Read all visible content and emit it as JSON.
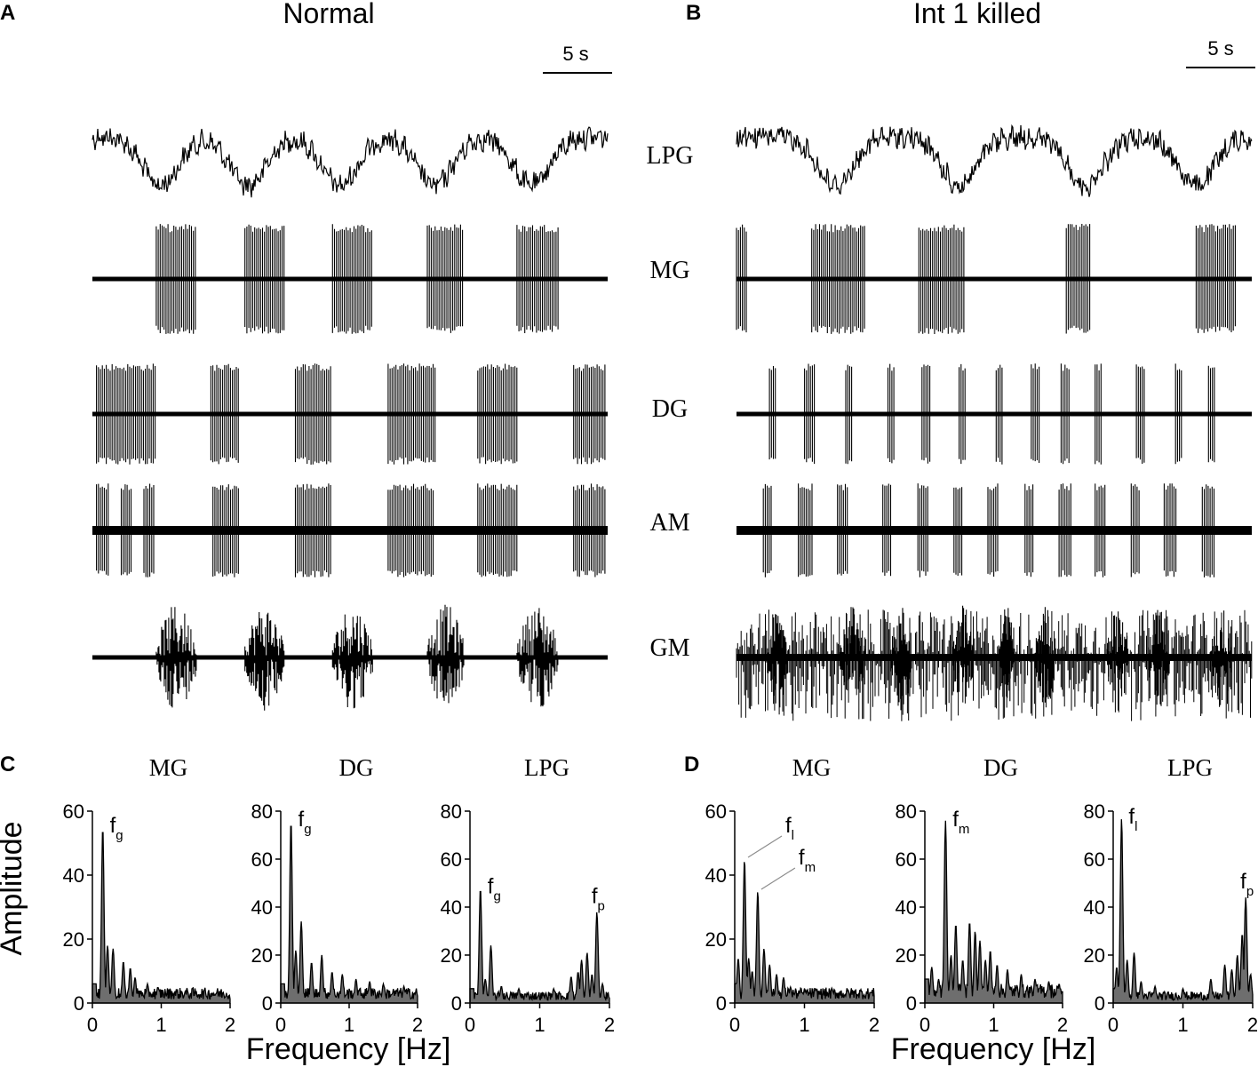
{
  "colors": {
    "ink": "#000000",
    "spectrum_fill": "#6e6e6e",
    "annot_line": "#8c8c8c"
  },
  "panels": {
    "A": {
      "letter": "A",
      "title": "Normal",
      "scale_bar": "5 s"
    },
    "B": {
      "letter": "B",
      "title": "Int 1 killed",
      "scale_bar": "5 s"
    },
    "C": {
      "letter": "C"
    },
    "D": {
      "letter": "D"
    }
  },
  "trace_labels": [
    "LPG",
    "MG",
    "DG",
    "AM",
    "GM"
  ],
  "xlabel": "Frequency [Hz]",
  "ylabel": "Amplitude",
  "chart_data": [
    {
      "type": "line",
      "panel": "A",
      "description_note": "",
      "x_unit": "s",
      "scale_bar_s": 5,
      "series": [
        {
          "name": "LPG",
          "kind": "slow_wave",
          "troughs_s": [
            6.6,
            15.1,
            24.0,
            33.2,
            42.6
          ]
        },
        {
          "name": "MG",
          "kind": "bursts",
          "bursts_s": [
            [
              6.2,
              10.1
            ],
            [
              14.8,
              18.6
            ],
            [
              23.3,
              27.2
            ],
            [
              32.5,
              36.1
            ],
            [
              41.2,
              45.2
            ]
          ]
        },
        {
          "name": "DG",
          "kind": "bursts",
          "bursts_s": [
            [
              0.4,
              6.2
            ],
            [
              11.5,
              14.2
            ],
            [
              19.7,
              23.3
            ],
            [
              28.7,
              33.3
            ],
            [
              37.4,
              41.2
            ],
            [
              46.7,
              49.8
            ]
          ]
        },
        {
          "name": "AM",
          "kind": "bursts",
          "bursts_s": [
            [
              0.4,
              1.7
            ],
            [
              2.8,
              3.8
            ],
            [
              5.0,
              6.0
            ],
            [
              11.7,
              14.2
            ],
            [
              19.7,
              23.3
            ],
            [
              28.7,
              33.1
            ],
            [
              37.4,
              41.2
            ],
            [
              46.7,
              49.8
            ]
          ]
        },
        {
          "name": "GM",
          "kind": "bursts",
          "bursts_s": [
            [
              6.2,
              10.1
            ],
            [
              14.8,
              18.6
            ],
            [
              23.3,
              27.2
            ],
            [
              32.5,
              36.1
            ],
            [
              41.2,
              45.2
            ]
          ]
        }
      ]
    },
    {
      "type": "line",
      "panel": "B",
      "x_unit": "s",
      "scale_bar_s": 5,
      "series": [
        {
          "name": "LPG",
          "kind": "slow_wave",
          "troughs_s": [
            9.6,
            21.6,
            33.9,
            44.6
          ]
        },
        {
          "name": "MG",
          "kind": "bursts",
          "bursts_s": [
            [
              0.0,
              1.0
            ],
            [
              7.3,
              12.5
            ],
            [
              17.7,
              22.2
            ],
            [
              32.0,
              34.3
            ],
            [
              44.6,
              48.5
            ]
          ]
        },
        {
          "name": "DG",
          "kind": "bursts",
          "bursts_s": [
            [
              3.2,
              3.9
            ],
            [
              6.6,
              7.7
            ],
            [
              10.6,
              11.3
            ],
            [
              14.7,
              15.4
            ],
            [
              18.0,
              18.8
            ],
            [
              21.6,
              22.2
            ],
            [
              25.2,
              25.9
            ],
            [
              28.6,
              29.5
            ],
            [
              31.5,
              32.3
            ],
            [
              34.8,
              35.5
            ],
            [
              38.8,
              39.6
            ],
            [
              42.6,
              43.2
            ],
            [
              45.8,
              46.5
            ]
          ]
        },
        {
          "name": "AM",
          "kind": "bursts",
          "bursts_s": [
            [
              2.6,
              3.5
            ],
            [
              6.0,
              7.4
            ],
            [
              9.8,
              10.8
            ],
            [
              14.2,
              15.1
            ],
            [
              17.6,
              18.6
            ],
            [
              21.1,
              22.0
            ],
            [
              24.4,
              25.5
            ],
            [
              28.0,
              28.9
            ],
            [
              31.3,
              32.5
            ],
            [
              34.8,
              35.9
            ],
            [
              38.3,
              39.2
            ],
            [
              41.5,
              42.8
            ],
            [
              45.2,
              46.5
            ]
          ]
        },
        {
          "name": "GM",
          "kind": "noisy_bursts",
          "bursts_s": [
            [
              3.0,
              5.0
            ],
            [
              10.0,
              12.5
            ],
            [
              15.0,
              17.0
            ],
            [
              21.0,
              23.0
            ],
            [
              25.5,
              27.0
            ],
            [
              29.0,
              31.0
            ],
            [
              36.0,
              38.0
            ],
            [
              40.0,
              42.0
            ],
            [
              46.0,
              48.0
            ]
          ]
        }
      ]
    },
    {
      "type": "area",
      "panel": "C",
      "title": "MG",
      "xlim": [
        0,
        2
      ],
      "ylim": [
        0,
        60
      ],
      "xticks": [
        0,
        1,
        2
      ],
      "yticks": [
        0,
        20,
        40,
        60
      ],
      "peaks": [
        [
          0.15,
          55
        ],
        [
          0.22,
          18
        ],
        [
          0.3,
          17
        ],
        [
          0.45,
          13
        ],
        [
          0.55,
          11
        ],
        [
          0.62,
          8
        ],
        [
          0.8,
          6
        ],
        [
          0.95,
          5
        ]
      ],
      "baseline": 3,
      "annotations": [
        {
          "label": "f",
          "sub": "g",
          "x": 0.15,
          "y": 55
        }
      ]
    },
    {
      "type": "area",
      "panel": "C",
      "title": "DG",
      "xlim": [
        0,
        2
      ],
      "ylim": [
        0,
        80
      ],
      "xticks": [
        0,
        1,
        2
      ],
      "yticks": [
        0,
        20,
        40,
        60,
        80
      ],
      "peaks": [
        [
          0.15,
          76
        ],
        [
          0.22,
          22
        ],
        [
          0.3,
          34
        ],
        [
          0.45,
          17
        ],
        [
          0.6,
          20
        ],
        [
          0.75,
          13
        ],
        [
          0.9,
          12
        ],
        [
          1.1,
          10
        ],
        [
          1.3,
          9
        ],
        [
          1.5,
          8
        ],
        [
          1.8,
          7
        ]
      ],
      "baseline": 4,
      "annotations": [
        {
          "label": "f",
          "sub": "g",
          "x": 0.15,
          "y": 76
        }
      ]
    },
    {
      "type": "area",
      "panel": "C",
      "title": "LPG",
      "xlim": [
        0,
        2
      ],
      "ylim": [
        0,
        80
      ],
      "xticks": [
        0,
        1,
        2
      ],
      "yticks": [
        0,
        20,
        40,
        60,
        80
      ],
      "peaks": [
        [
          0.15,
          48
        ],
        [
          0.22,
          10
        ],
        [
          0.3,
          24
        ],
        [
          0.45,
          7
        ],
        [
          0.7,
          6
        ],
        [
          1.2,
          6
        ],
        [
          1.45,
          11
        ],
        [
          1.55,
          13
        ],
        [
          1.6,
          18
        ],
        [
          1.68,
          21
        ],
        [
          1.75,
          12
        ],
        [
          1.82,
          38
        ],
        [
          1.9,
          8
        ]
      ],
      "baseline": 3,
      "annotations": [
        {
          "label": "f",
          "sub": "g",
          "x": 0.15,
          "y": 48
        },
        {
          "label": "f",
          "sub": "p",
          "x": 1.82,
          "y": 38
        }
      ]
    },
    {
      "type": "area",
      "panel": "D",
      "title": "MG",
      "xlim": [
        0,
        2
      ],
      "ylim": [
        0,
        60
      ],
      "xticks": [
        0,
        1,
        2
      ],
      "yticks": [
        0,
        20,
        40,
        60
      ],
      "peaks": [
        [
          0.05,
          14
        ],
        [
          0.14,
          45
        ],
        [
          0.2,
          14
        ],
        [
          0.25,
          10
        ],
        [
          0.33,
          35
        ],
        [
          0.42,
          17
        ],
        [
          0.5,
          12
        ],
        [
          0.6,
          9
        ],
        [
          0.7,
          8
        ],
        [
          0.8,
          5
        ],
        [
          1.0,
          4
        ]
      ],
      "baseline": 3,
      "annotations": [
        {
          "label": "f",
          "sub": "l",
          "x": 0.14,
          "y": 45
        },
        {
          "label": "f",
          "sub": "m",
          "x": 0.33,
          "y": 35
        }
      ]
    },
    {
      "type": "area",
      "panel": "D",
      "title": "DG",
      "xlim": [
        0,
        2
      ],
      "ylim": [
        0,
        80
      ],
      "xticks": [
        0,
        1,
        2
      ],
      "yticks": [
        0,
        20,
        40,
        60,
        80
      ],
      "peaks": [
        [
          0.1,
          15
        ],
        [
          0.2,
          10
        ],
        [
          0.3,
          76
        ],
        [
          0.38,
          20
        ],
        [
          0.45,
          33
        ],
        [
          0.55,
          18
        ],
        [
          0.65,
          34
        ],
        [
          0.73,
          30
        ],
        [
          0.8,
          26
        ],
        [
          0.88,
          18
        ],
        [
          0.95,
          22
        ],
        [
          1.05,
          16
        ],
        [
          1.2,
          14
        ],
        [
          1.4,
          12
        ],
        [
          1.6,
          10
        ],
        [
          1.8,
          9
        ],
        [
          1.95,
          8
        ]
      ],
      "baseline": 5,
      "annotations": [
        {
          "label": "f",
          "sub": "m",
          "x": 0.3,
          "y": 76
        }
      ]
    },
    {
      "type": "area",
      "panel": "D",
      "title": "LPG",
      "xlim": [
        0,
        2
      ],
      "ylim": [
        0,
        80
      ],
      "xticks": [
        0,
        1,
        2
      ],
      "yticks": [
        0,
        20,
        40,
        60,
        80
      ],
      "peaks": [
        [
          0.05,
          15
        ],
        [
          0.12,
          77
        ],
        [
          0.2,
          18
        ],
        [
          0.3,
          21
        ],
        [
          0.4,
          9
        ],
        [
          0.6,
          7
        ],
        [
          1.0,
          6
        ],
        [
          1.4,
          10
        ],
        [
          1.6,
          16
        ],
        [
          1.7,
          14
        ],
        [
          1.78,
          20
        ],
        [
          1.85,
          29
        ],
        [
          1.9,
          44
        ],
        [
          1.97,
          12
        ]
      ],
      "baseline": 3,
      "annotations": [
        {
          "label": "f",
          "sub": "l",
          "x": 0.12,
          "y": 77
        },
        {
          "label": "f",
          "sub": "p",
          "x": 1.9,
          "y": 44
        }
      ]
    }
  ]
}
